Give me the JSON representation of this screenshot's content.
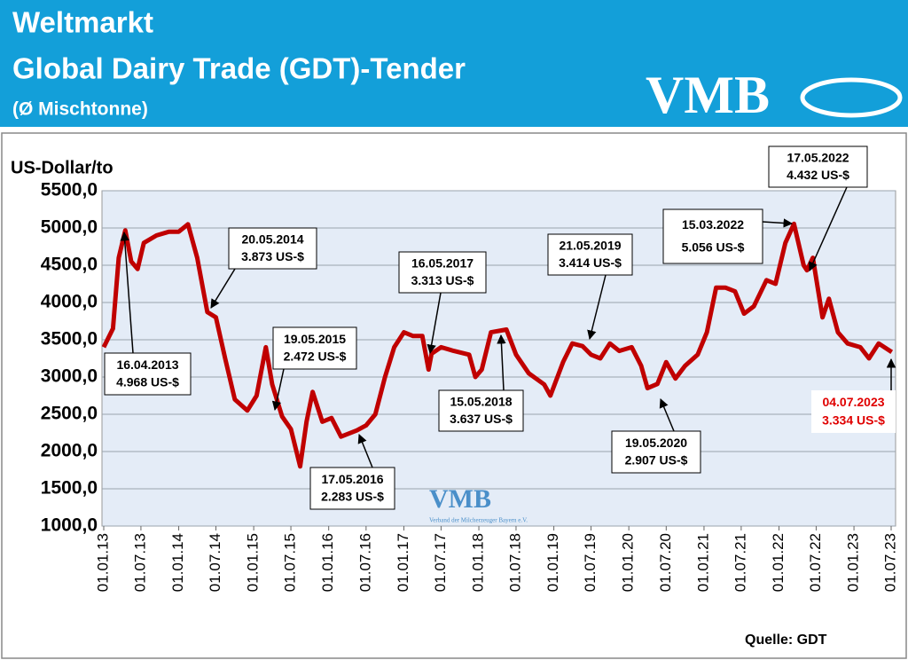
{
  "header": {
    "title": "Weltmarkt",
    "subtitle": "Global Dairy Trade (GDT)-Tender",
    "note": "(Ø Mischtonne)",
    "logo": "VMB"
  },
  "chart_data": {
    "type": "line",
    "y_label": "US-Dollar/to",
    "source": "Quelle: GDT",
    "watermark": "VMB",
    "watermark_caption": "Verband der Milcherzeuger Bayern e.V.",
    "grid": true,
    "xlim": [
      "2013-01-01",
      "2023-07-01"
    ],
    "ylim": [
      1000,
      5500
    ],
    "yticks": [
      {
        "value": 1000,
        "label": "1000,0"
      },
      {
        "value": 1500,
        "label": "1500,0"
      },
      {
        "value": 2000,
        "label": "2000,0"
      },
      {
        "value": 2500,
        "label": "2500,0"
      },
      {
        "value": 3000,
        "label": "3000,0"
      },
      {
        "value": 3500,
        "label": "3500,0"
      },
      {
        "value": 4000,
        "label": "4000,0"
      },
      {
        "value": 4500,
        "label": "4500,0"
      },
      {
        "value": 5000,
        "label": "5000,0"
      },
      {
        "value": 5500,
        "label": "5500,0"
      }
    ],
    "xticks": [
      {
        "value": "2013-01-01",
        "label": "01.01.13"
      },
      {
        "value": "2013-07-01",
        "label": "01.07.13"
      },
      {
        "value": "2014-01-01",
        "label": "01.01.14"
      },
      {
        "value": "2014-07-01",
        "label": "01.07.14"
      },
      {
        "value": "2015-01-01",
        "label": "01.01.15"
      },
      {
        "value": "2015-07-01",
        "label": "01.07.15"
      },
      {
        "value": "2016-01-01",
        "label": "01.01.16"
      },
      {
        "value": "2016-07-01",
        "label": "01.07.16"
      },
      {
        "value": "2017-01-01",
        "label": "01.01.17"
      },
      {
        "value": "2017-07-01",
        "label": "01.07.17"
      },
      {
        "value": "2018-01-01",
        "label": "01.01.18"
      },
      {
        "value": "2018-07-01",
        "label": "01.07.18"
      },
      {
        "value": "2019-01-01",
        "label": "01.01.19"
      },
      {
        "value": "2019-07-01",
        "label": "01.07.19"
      },
      {
        "value": "2020-01-01",
        "label": "01.01.20"
      },
      {
        "value": "2020-07-01",
        "label": "01.07.20"
      },
      {
        "value": "2021-01-01",
        "label": "01.01.21"
      },
      {
        "value": "2021-07-01",
        "label": "01.07.21"
      },
      {
        "value": "2022-01-01",
        "label": "01.01.22"
      },
      {
        "value": "2022-07-01",
        "label": "01.07.22"
      },
      {
        "value": "2023-01-01",
        "label": "01.01.23"
      },
      {
        "value": "2023-07-01",
        "label": "01.07.23"
      }
    ],
    "x": [
      "2013-01-01",
      "2013-02-15",
      "2013-03-15",
      "2013-04-16",
      "2013-05-15",
      "2013-06-15",
      "2013-07-15",
      "2013-09-15",
      "2013-11-15",
      "2014-01-01",
      "2014-02-15",
      "2014-04-01",
      "2014-05-20",
      "2014-07-01",
      "2014-08-15",
      "2014-10-01",
      "2014-12-01",
      "2015-01-15",
      "2015-03-01",
      "2015-04-01",
      "2015-05-19",
      "2015-07-01",
      "2015-08-15",
      "2015-09-15",
      "2015-10-15",
      "2015-12-01",
      "2016-01-15",
      "2016-03-01",
      "2016-05-17",
      "2016-07-01",
      "2016-08-15",
      "2016-10-01",
      "2016-11-15",
      "2017-01-01",
      "2017-02-15",
      "2017-04-01",
      "2017-05-01",
      "2017-05-16",
      "2017-07-01",
      "2017-09-01",
      "2017-11-15",
      "2017-12-15",
      "2018-01-15",
      "2018-03-01",
      "2018-05-15",
      "2018-07-01",
      "2018-09-01",
      "2018-11-15",
      "2018-12-15",
      "2019-02-15",
      "2019-04-01",
      "2019-05-21",
      "2019-07-01",
      "2019-08-15",
      "2019-10-01",
      "2019-11-15",
      "2020-01-15",
      "2020-03-01",
      "2020-04-01",
      "2020-05-19",
      "2020-07-01",
      "2020-08-15",
      "2020-10-01",
      "2020-12-01",
      "2021-01-15",
      "2021-03-01",
      "2021-04-15",
      "2021-06-01",
      "2021-07-15",
      "2021-09-01",
      "2021-11-01",
      "2021-12-15",
      "2022-02-01",
      "2022-03-15",
      "2022-05-01",
      "2022-05-17",
      "2022-06-15",
      "2022-08-01",
      "2022-09-01",
      "2022-10-15",
      "2022-12-01",
      "2023-02-01",
      "2023-03-15",
      "2023-05-01",
      "2023-07-04"
    ],
    "series": [
      {
        "name": "GDT",
        "color": "#c00000",
        "values": [
          3400,
          3650,
          4600,
          4968,
          4550,
          4450,
          4800,
          4900,
          4950,
          4950,
          5050,
          4600,
          3873,
          3800,
          3250,
          2700,
          2550,
          2750,
          3400,
          2900,
          2472,
          2300,
          1800,
          2400,
          2800,
          2400,
          2450,
          2200,
          2283,
          2350,
          2500,
          3000,
          3400,
          3600,
          3550,
          3550,
          3100,
          3313,
          3400,
          3350,
          3300,
          3000,
          3100,
          3600,
          3637,
          3300,
          3050,
          2900,
          2750,
          3200,
          3450,
          3414,
          3300,
          3250,
          3450,
          3350,
          3400,
          3150,
          2850,
          2907,
          3200,
          2980,
          3150,
          3300,
          3600,
          4200,
          4200,
          4150,
          3850,
          3950,
          4300,
          4250,
          4800,
          5056,
          4500,
          4432,
          4600,
          3800,
          4050,
          3600,
          3450,
          3400,
          3250,
          3450,
          3334
        ]
      }
    ],
    "annotations": [
      {
        "date": "16.04.2013",
        "value": "4.968 US-$",
        "color": "#000000"
      },
      {
        "date": "20.05.2014",
        "value": "3.873 US-$",
        "color": "#000000"
      },
      {
        "date": "19.05.2015",
        "value": "2.472 US-$",
        "color": "#000000"
      },
      {
        "date": "17.05.2016",
        "value": "2.283 US-$",
        "color": "#000000"
      },
      {
        "date": "16.05.2017",
        "value": "3.313 US-$",
        "color": "#000000"
      },
      {
        "date": "15.05.2018",
        "value": "3.637 US-$",
        "color": "#000000"
      },
      {
        "date": "21.05.2019",
        "value": "3.414 US-$",
        "color": "#000000"
      },
      {
        "date": "19.05.2020",
        "value": "2.907 US-$",
        "color": "#000000"
      },
      {
        "date": "15.03.2022",
        "value": "5.056 US-$",
        "color": "#000000"
      },
      {
        "date": "17.05.2022",
        "value": "4.432 US-$",
        "color": "#000000"
      },
      {
        "date": "04.07.2023",
        "value": "3.334 US-$",
        "color": "#e00000"
      }
    ]
  }
}
